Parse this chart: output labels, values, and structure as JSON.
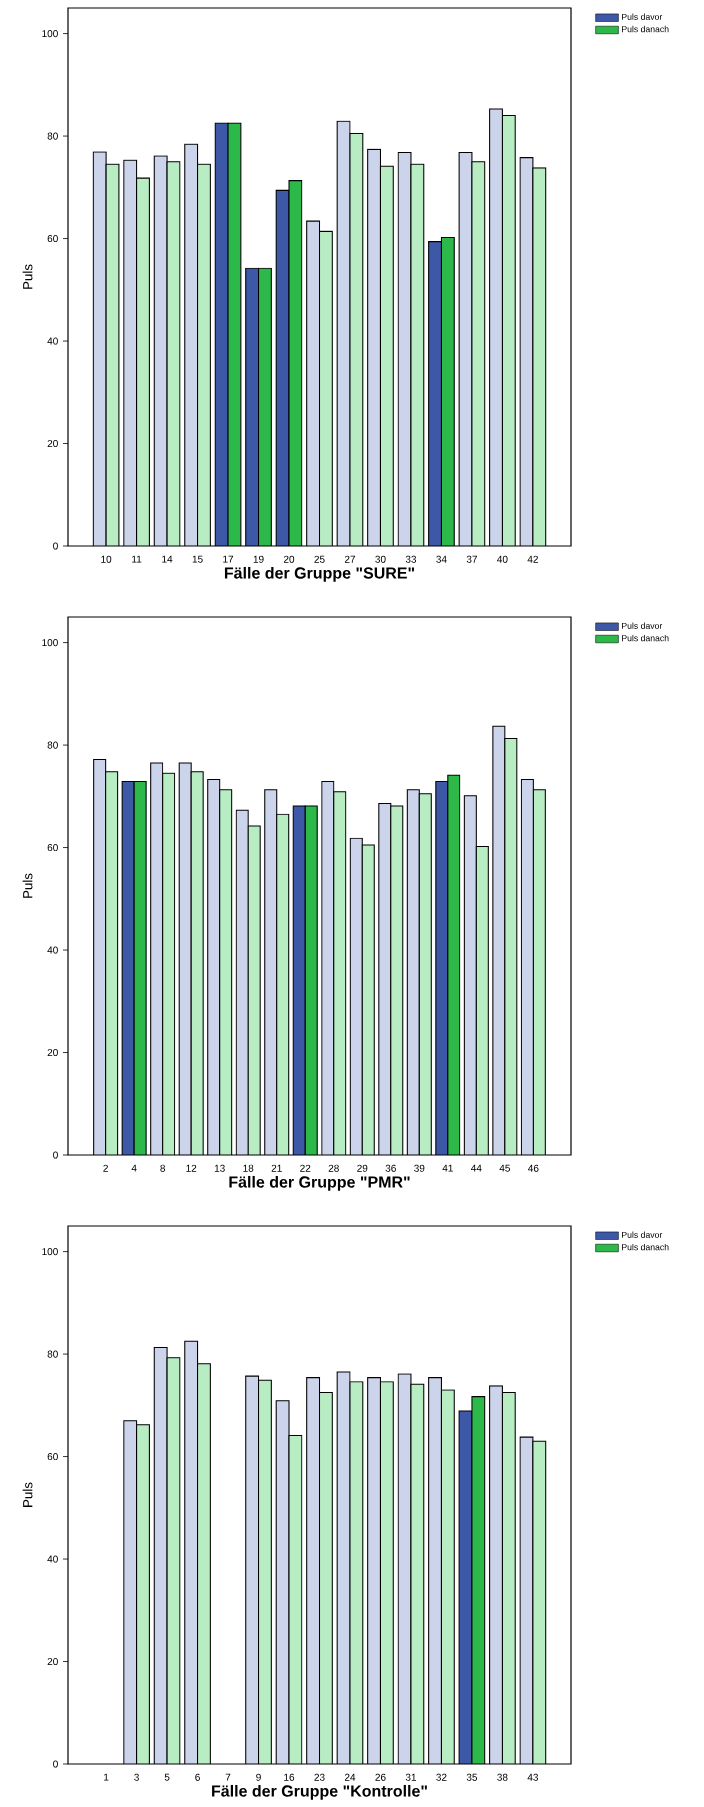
{
  "chart_data": [
    {
      "type": "bar",
      "xlabel": "Fälle der Gruppe \"SURE\"",
      "ylabel": "Puls",
      "categories": [
        "10",
        "11",
        "14",
        "15",
        "17",
        "19",
        "20",
        "25",
        "27",
        "30",
        "33",
        "34",
        "37",
        "40",
        "42"
      ],
      "ylim": [
        0,
        105
      ],
      "yticks": [
        0,
        20,
        40,
        60,
        80,
        100
      ],
      "legend": "top right",
      "series": [
        {
          "name": "Puls davor",
          "color": "#3e58a8",
          "colors": [
            "#ccd4ec",
            "#ccd4ec",
            "#ccd4ec",
            "#ccd4ec",
            "#3e58a8",
            "#3e58a8",
            "#3e58a8",
            "#ccd4ec",
            "#ccd4ec",
            "#ccd4ec",
            "#ccd4ec",
            "#3e58a8",
            "#ccd4ec",
            "#ccd4ec",
            "#ccd4ec"
          ],
          "values": [
            76.9,
            75.3,
            76.1,
            78.4,
            82.5,
            54.2,
            69.4,
            63.4,
            82.9,
            77.4,
            76.8,
            59.4,
            76.8,
            85.3,
            75.8
          ]
        },
        {
          "name": "Puls danach",
          "color": "#2db84a",
          "colors": [
            "#b8edc4",
            "#b8edc4",
            "#b8edc4",
            "#b8edc4",
            "#2db84a",
            "#2db84a",
            "#2db84a",
            "#b8edc4",
            "#b8edc4",
            "#b8edc4",
            "#b8edc4",
            "#2db84a",
            "#b8edc4",
            "#b8edc4",
            "#b8edc4"
          ],
          "values": [
            74.5,
            71.8,
            75.0,
            74.5,
            82.5,
            54.2,
            71.3,
            61.4,
            80.5,
            74.1,
            74.5,
            60.2,
            75.0,
            84.0,
            73.8
          ]
        }
      ]
    },
    {
      "type": "bar",
      "xlabel": "Fälle der Gruppe \"PMR\"",
      "ylabel": "Puls",
      "categories": [
        "2",
        "4",
        "8",
        "12",
        "13",
        "18",
        "21",
        "22",
        "28",
        "29",
        "36",
        "39",
        "41",
        "44",
        "45",
        "46"
      ],
      "ylim": [
        0,
        105
      ],
      "yticks": [
        0,
        20,
        40,
        60,
        80,
        100
      ],
      "legend": "top right",
      "series": [
        {
          "name": "Puls davor",
          "color": "#3e58a8",
          "colors": [
            "#ccd4ec",
            "#3e58a8",
            "#ccd4ec",
            "#ccd4ec",
            "#ccd4ec",
            "#ccd4ec",
            "#ccd4ec",
            "#3e58a8",
            "#ccd4ec",
            "#ccd4ec",
            "#ccd4ec",
            "#ccd4ec",
            "#3e58a8",
            "#ccd4ec",
            "#ccd4ec",
            "#ccd4ec"
          ],
          "values": [
            77.2,
            72.9,
            76.5,
            76.5,
            73.3,
            67.3,
            71.3,
            68.1,
            72.9,
            61.8,
            68.6,
            71.3,
            72.9,
            70.1,
            83.7,
            73.3
          ]
        },
        {
          "name": "Puls danach",
          "color": "#2db84a",
          "colors": [
            "#b8edc4",
            "#2db84a",
            "#b8edc4",
            "#b8edc4",
            "#b8edc4",
            "#b8edc4",
            "#b8edc4",
            "#2db84a",
            "#b8edc4",
            "#b8edc4",
            "#b8edc4",
            "#b8edc4",
            "#2db84a",
            "#b8edc4",
            "#b8edc4",
            "#b8edc4"
          ],
          "values": [
            74.8,
            72.9,
            74.5,
            74.8,
            71.3,
            64.2,
            66.5,
            68.1,
            70.9,
            60.5,
            68.1,
            70.5,
            74.1,
            60.2,
            81.3,
            71.3
          ]
        }
      ]
    },
    {
      "type": "bar",
      "xlabel": "Fälle der Gruppe \"Kontrolle\"",
      "ylabel": "Puls",
      "categories": [
        "1",
        "3",
        "5",
        "6",
        "7",
        "9",
        "16",
        "23",
        "24",
        "26",
        "31",
        "32",
        "35",
        "38",
        "43"
      ],
      "ylim": [
        0,
        105
      ],
      "yticks": [
        0,
        20,
        40,
        60,
        80,
        100
      ],
      "legend": "top right",
      "series": [
        {
          "name": "Puls davor",
          "color": "#3e58a8",
          "colors": [
            "#ccd4ec",
            "#ccd4ec",
            "#ccd4ec",
            "#ccd4ec",
            "#ccd4ec",
            "#ccd4ec",
            "#ccd4ec",
            "#ccd4ec",
            "#ccd4ec",
            "#ccd4ec",
            "#ccd4ec",
            "#ccd4ec",
            "#3e58a8",
            "#ccd4ec",
            "#ccd4ec"
          ],
          "values": [
            null,
            67.0,
            81.3,
            82.5,
            null,
            75.7,
            70.9,
            75.4,
            76.5,
            75.4,
            76.1,
            75.4,
            68.9,
            73.8,
            63.8
          ]
        },
        {
          "name": "Puls danach",
          "color": "#2db84a",
          "colors": [
            "#b8edc4",
            "#b8edc4",
            "#b8edc4",
            "#b8edc4",
            "#b8edc4",
            "#b8edc4",
            "#b8edc4",
            "#b8edc4",
            "#b8edc4",
            "#b8edc4",
            "#b8edc4",
            "#b8edc4",
            "#2db84a",
            "#b8edc4",
            "#b8edc4"
          ],
          "values": [
            null,
            66.2,
            79.3,
            78.1,
            null,
            74.9,
            64.1,
            72.5,
            74.6,
            74.6,
            74.1,
            73.0,
            71.7,
            72.5,
            63.0
          ]
        }
      ]
    }
  ]
}
